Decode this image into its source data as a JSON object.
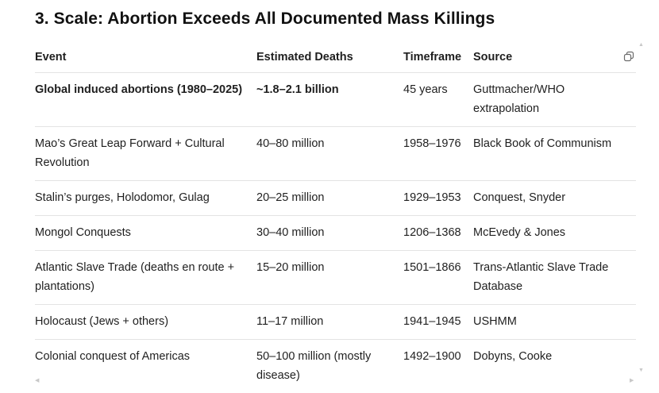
{
  "section_title": "3. Scale: Abortion Exceeds All Documented Mass Killings",
  "table": {
    "headers": [
      "Event",
      "Estimated Deaths",
      "Timeframe",
      "Source"
    ],
    "rows": [
      {
        "event": "Global induced abortions (1980–2025)",
        "deaths": "~1.8–2.1 billion",
        "timeframe": "45 years",
        "source": "Guttmacher/WHO extrapolation"
      },
      {
        "event": "Mao’s Great Leap Forward + Cultural Revolution",
        "deaths": "40–80 million",
        "timeframe": "1958–1976",
        "source": "Black Book of Communism"
      },
      {
        "event": "Stalin’s purges, Holodomor, Gulag",
        "deaths": "20–25 million",
        "timeframe": "1929–1953",
        "source": "Conquest, Snyder"
      },
      {
        "event": "Mongol Conquests",
        "deaths": "30–40 million",
        "timeframe": "1206–1368",
        "source": "McEvedy & Jones"
      },
      {
        "event": "Atlantic Slave Trade (deaths en route + plantations)",
        "deaths": "15–20 million",
        "timeframe": "1501–1866",
        "source": "Trans-Atlantic Slave Trade Database"
      },
      {
        "event": "Holocaust (Jews + others)",
        "deaths": "11–17 million",
        "timeframe": "1941–1945",
        "source": "USHMM"
      },
      {
        "event": "Colonial conquest of Americas",
        "deaths": "50–100 million (mostly disease)",
        "timeframe": "1492–1900",
        "source": "Dobyns, Cooke"
      }
    ]
  },
  "icons": {
    "copy": "copy-icon"
  }
}
